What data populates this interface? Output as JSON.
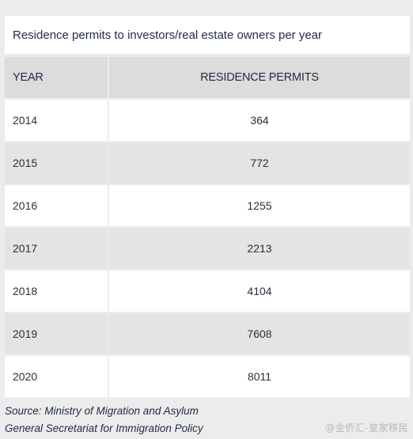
{
  "chart_data": {
    "type": "table",
    "title": "Residence permits to investors/real estate owners per year",
    "columns": [
      "YEAR",
      "RESIDENCE PERMITS"
    ],
    "rows": [
      {
        "year": "2014",
        "permits": "364"
      },
      {
        "year": "2015",
        "permits": "772"
      },
      {
        "year": "2016",
        "permits": "1255"
      },
      {
        "year": "2017",
        "permits": "2213"
      },
      {
        "year": "2018",
        "permits": "4104"
      },
      {
        "year": "2019",
        "permits": "7608"
      },
      {
        "year": "2020",
        "permits": "8011"
      }
    ]
  },
  "source": {
    "line1": "Source: Ministry of Migration and Asylum",
    "line2": "General Secretariat for Immigration Policy"
  },
  "watermark": "@金侨汇-皇家移民"
}
